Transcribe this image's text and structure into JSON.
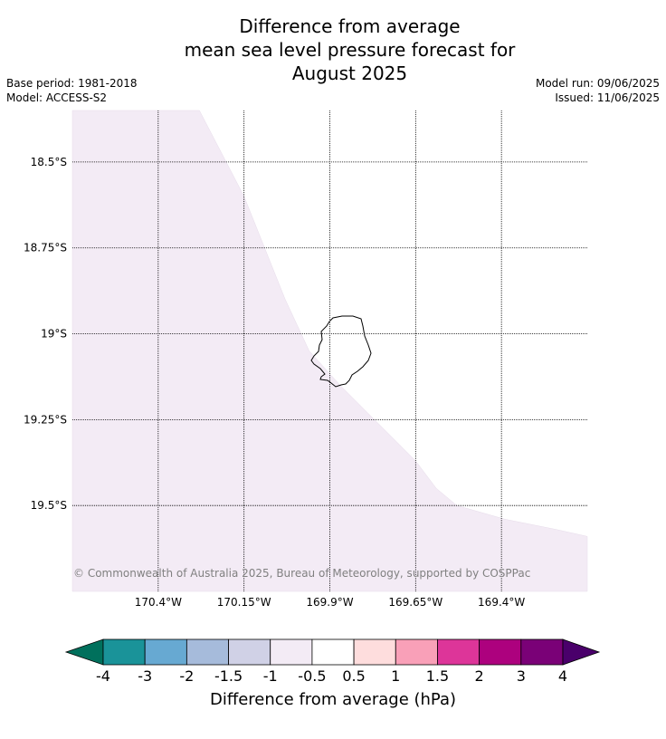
{
  "title": {
    "line1": "Difference from average",
    "line2": "mean sea level pressure forecast for",
    "line3": "August 2025"
  },
  "meta": {
    "base_period": "Base period: 1981-2018",
    "model": "Model: ACCESS-S2",
    "model_run": "Model run: 09/06/2025",
    "issued": "Issued: 11/06/2025"
  },
  "map": {
    "lat_labels": [
      "18.5°S",
      "18.75°S",
      "19°S",
      "19.25°S",
      "19.5°S"
    ],
    "lon_labels": [
      "170.4°W",
      "170.15°W",
      "169.9°W",
      "169.65°W",
      "169.4°W"
    ],
    "lat_values": [
      -18.5,
      -18.75,
      -19.0,
      -19.25,
      -19.5
    ],
    "lon_values": [
      -170.4,
      -170.15,
      -169.9,
      -169.65,
      -169.4
    ],
    "extent": {
      "lon_min": -170.65,
      "lon_max": -169.15,
      "lat_max": -18.35,
      "lat_min": -19.75
    },
    "shaded_region": {
      "class": "-1 to -0.5",
      "color": "#f3ebf5",
      "boundary_lonlat": [
        [
          -170.28,
          -18.35
        ],
        [
          -170.15,
          -18.6
        ],
        [
          -170.03,
          -18.9
        ],
        [
          -169.96,
          -19.05
        ],
        [
          -169.87,
          -19.15
        ],
        [
          -169.77,
          -19.25
        ],
        [
          -169.72,
          -19.3
        ],
        [
          -169.65,
          -19.37
        ],
        [
          -169.59,
          -19.45
        ],
        [
          -169.53,
          -19.5
        ],
        [
          -169.39,
          -19.54
        ],
        [
          -169.24,
          -19.57
        ],
        [
          -169.15,
          -19.59
        ]
      ]
    },
    "island_name": "",
    "copyright": "© Commonwealth of Australia 2025, Bureau of Meteorology, supported by COSPPac"
  },
  "colorbar": {
    "title": "Difference from average (hPa)",
    "labels": [
      "-4",
      "-3",
      "-2",
      "-1.5",
      "-1",
      "-0.5",
      "0.5",
      "1",
      "1.5",
      "2",
      "3",
      "4"
    ],
    "under_color": "#00705c",
    "over_color": "#4a006b",
    "colors": [
      "#1a9399",
      "#67a9d2",
      "#a6bbdb",
      "#d0d1e6",
      "#f3ebf5",
      "#ffffff",
      "#fedddd",
      "#f9a0b8",
      "#dd3599",
      "#ad017e",
      "#7a0177"
    ]
  }
}
